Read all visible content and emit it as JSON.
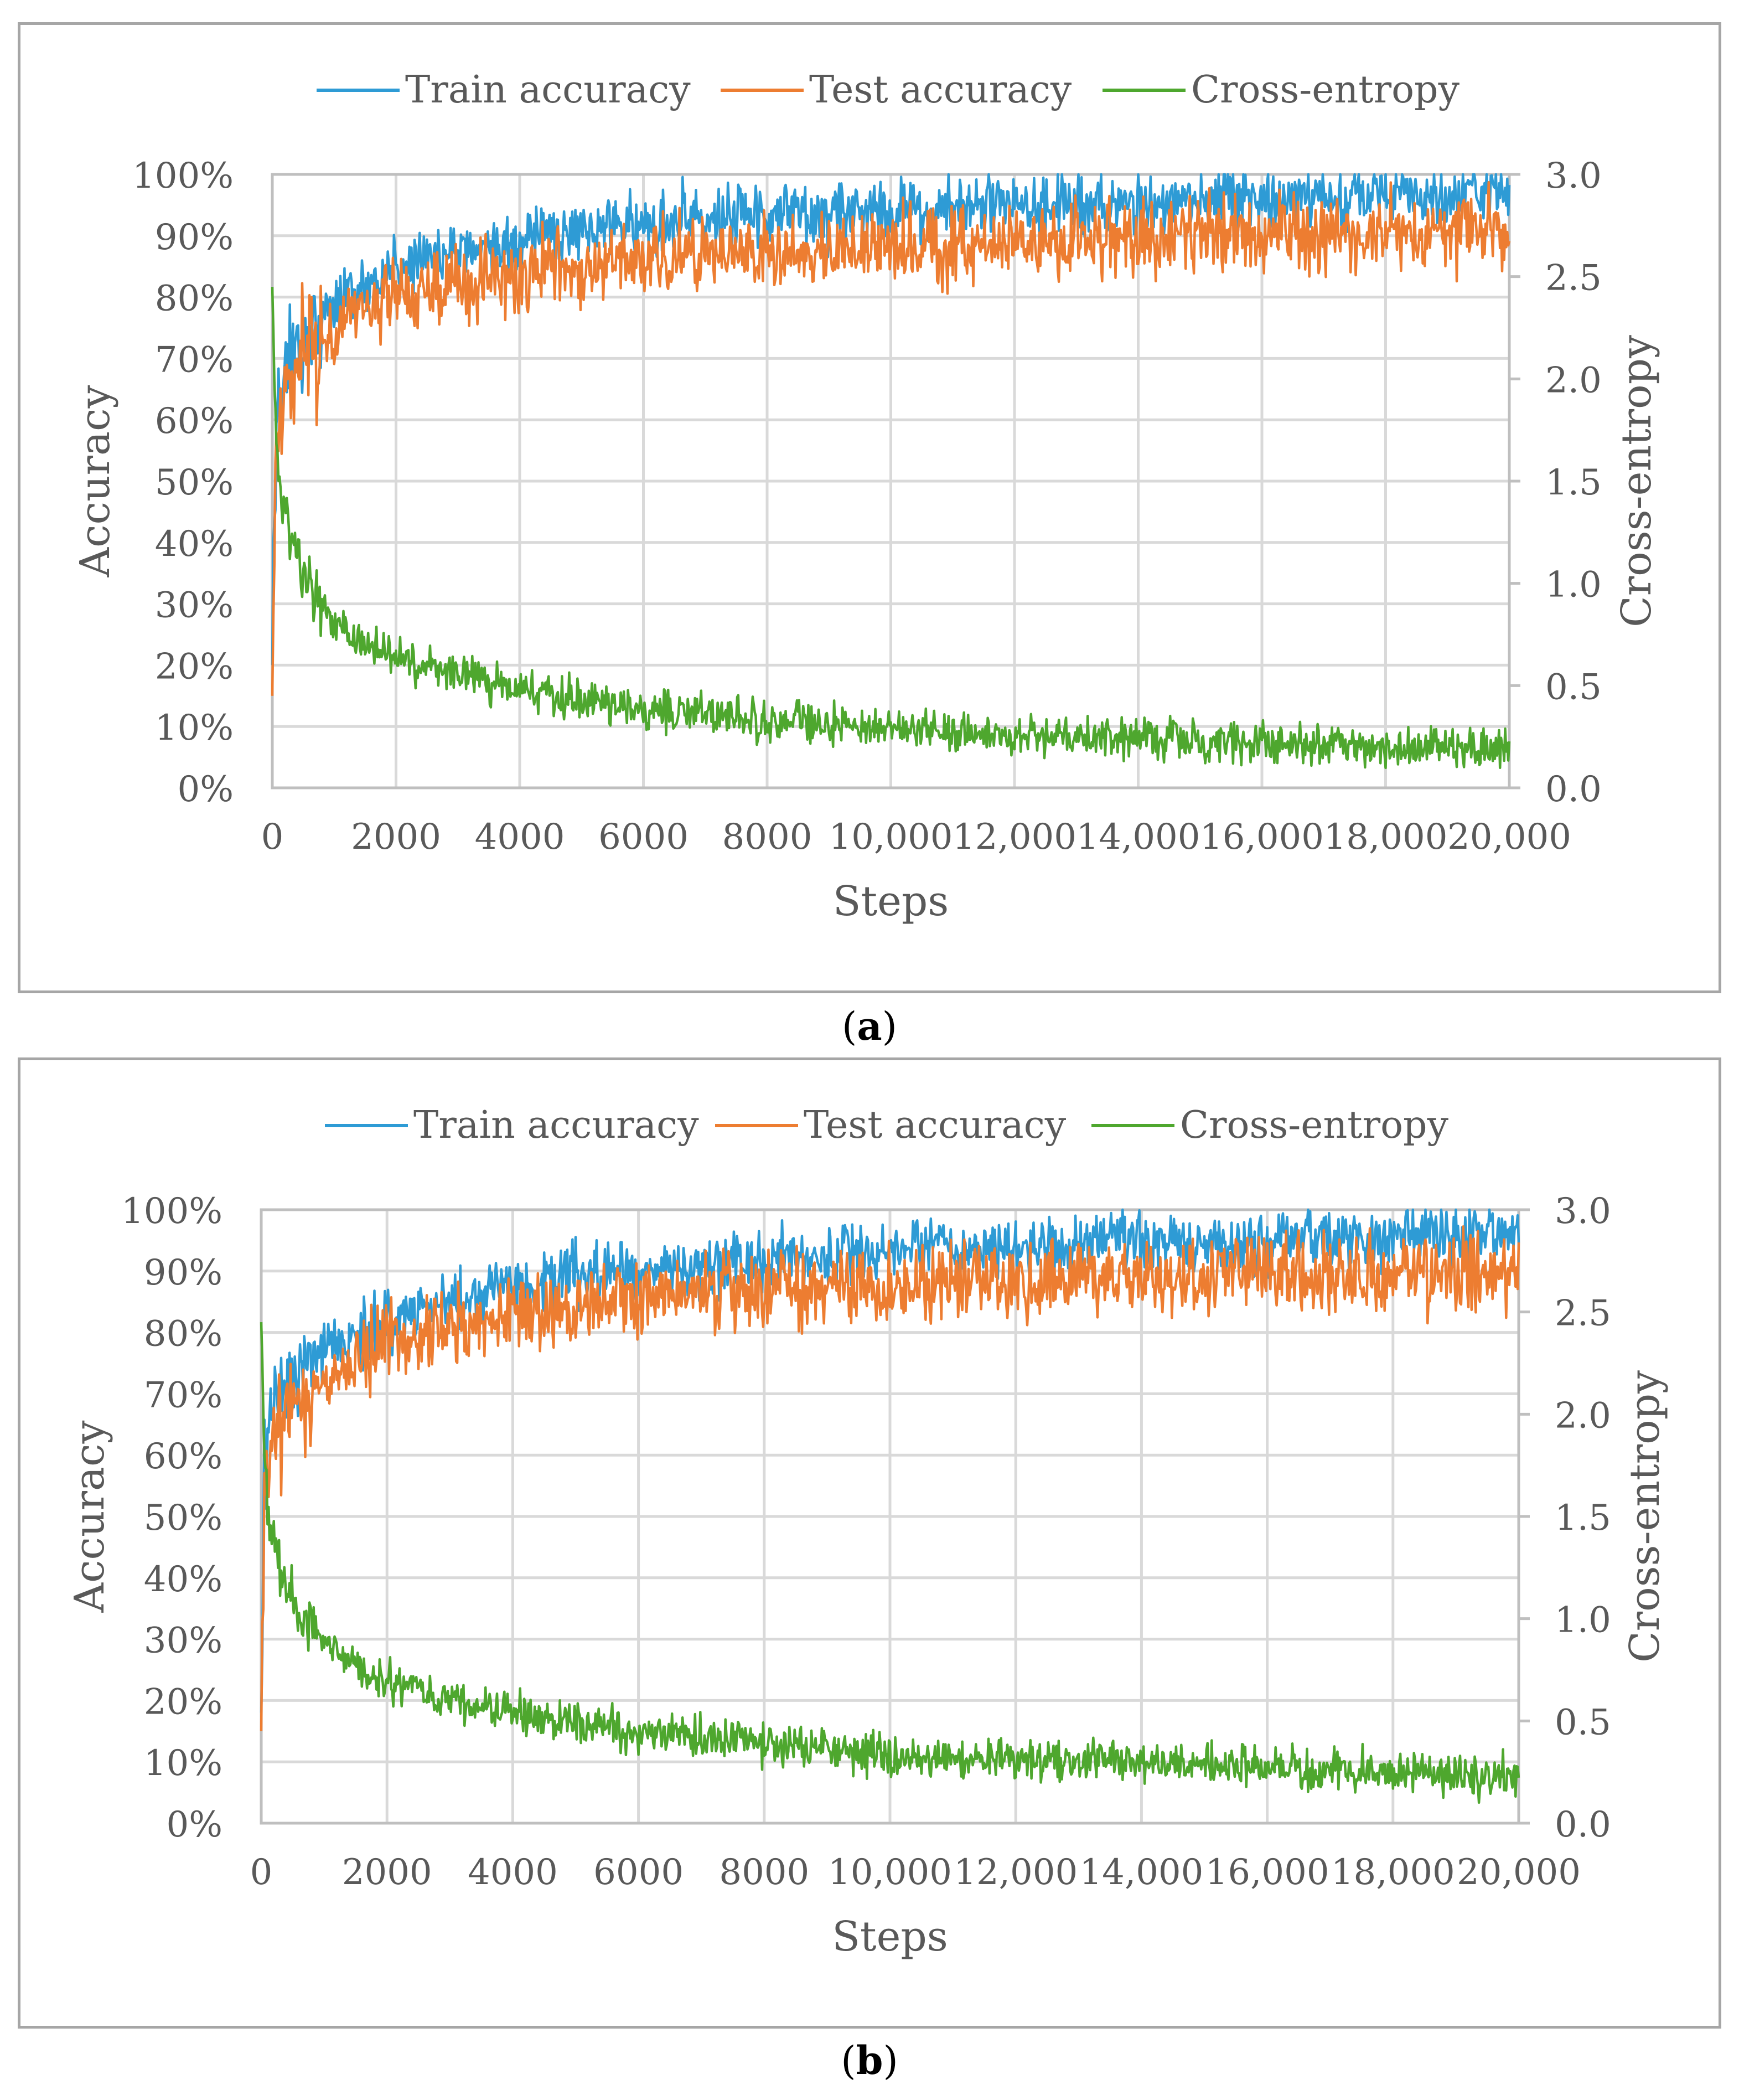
{
  "chart_data": [
    {
      "type": "line",
      "panel_label": "a",
      "title": "",
      "xlabel": "Steps",
      "ylabel": "Accuracy",
      "y2label": "Cross-entropy",
      "xlim": [
        0,
        20000
      ],
      "ylim": [
        0,
        100
      ],
      "y2lim": [
        0,
        3.0
      ],
      "x_ticks": [
        "0",
        "2000",
        "4000",
        "6000",
        "8000",
        "10,000",
        "12,000",
        "14,000",
        "16,000",
        "18,000",
        "20,000"
      ],
      "y_ticks": [
        "0%",
        "10%",
        "20%",
        "30%",
        "40%",
        "50%",
        "60%",
        "70%",
        "80%",
        "90%",
        "100%"
      ],
      "y2_ticks": [
        "0.0",
        "0.5",
        "1.0",
        "1.5",
        "2.0",
        "2.5",
        "3.0"
      ],
      "grid": true,
      "legend_position": "top-center",
      "series": [
        {
          "name": "Train accuracy",
          "axis": "left",
          "color": "#2e9bd5",
          "noise": 3.5,
          "x": [
            0,
            50,
            100,
            200,
            400,
            600,
            1000,
            1500,
            2000,
            3000,
            4000,
            5000,
            6000,
            8000,
            10000,
            12000,
            14000,
            16000,
            18000,
            20000
          ],
          "values": [
            20,
            55,
            62,
            66,
            71,
            74,
            79,
            82,
            85,
            87.5,
            89.5,
            91,
            92,
            93,
            94,
            95,
            95.5,
            96,
            96.5,
            97
          ]
        },
        {
          "name": "Test accuracy",
          "axis": "left",
          "color": "#ed7d31",
          "noise": 4.5,
          "x": [
            0,
            50,
            100,
            200,
            400,
            600,
            1000,
            1500,
            2000,
            3000,
            4000,
            5000,
            6000,
            8000,
            10000,
            12000,
            14000,
            16000,
            18000,
            20000
          ],
          "values": [
            15,
            52,
            58,
            63,
            68,
            71,
            75,
            78,
            80,
            82,
            84,
            85,
            86,
            87.5,
            88,
            89,
            89.5,
            90,
            90.5,
            91
          ]
        },
        {
          "name": "Cross-entropy",
          "axis": "right",
          "color": "#4ea72e",
          "noise": 0.07,
          "x": [
            0,
            50,
            100,
            200,
            400,
            600,
            1000,
            1500,
            2000,
            3000,
            4000,
            5000,
            6000,
            8000,
            10000,
            12000,
            14000,
            16000,
            18000,
            20000
          ],
          "values": [
            2.45,
            1.8,
            1.55,
            1.3,
            1.1,
            0.98,
            0.82,
            0.72,
            0.64,
            0.55,
            0.48,
            0.43,
            0.39,
            0.33,
            0.29,
            0.26,
            0.24,
            0.22,
            0.2,
            0.18
          ]
        }
      ]
    },
    {
      "type": "line",
      "panel_label": "b",
      "title": "",
      "xlabel": "Steps",
      "ylabel": "Accuracy",
      "y2label": "Cross-entropy",
      "xlim": [
        0,
        20000
      ],
      "ylim": [
        0,
        100
      ],
      "y2lim": [
        0,
        3.0
      ],
      "x_ticks": [
        "0",
        "2000",
        "4000",
        "6000",
        "8000",
        "10,000",
        "12,000",
        "14,000",
        "16,000",
        "18,000",
        "20,000"
      ],
      "y_ticks": [
        "0%",
        "10%",
        "20%",
        "30%",
        "40%",
        "50%",
        "60%",
        "70%",
        "80%",
        "90%",
        "100%"
      ],
      "y2_ticks": [
        "0.0",
        "0.5",
        "1.0",
        "1.5",
        "2.0",
        "2.5",
        "3.0"
      ],
      "grid": true,
      "legend_position": "top-center",
      "series": [
        {
          "name": "Train accuracy",
          "axis": "left",
          "color": "#2e9bd5",
          "noise": 3.5,
          "x": [
            0,
            50,
            100,
            200,
            400,
            600,
            1000,
            1500,
            2000,
            3000,
            4000,
            5000,
            6000,
            8000,
            10000,
            12000,
            14000,
            16000,
            18000,
            20000
          ],
          "values": [
            18,
            58,
            64,
            68,
            71,
            73,
            76,
            79,
            82,
            85,
            87.5,
            89,
            90,
            92,
            93,
            94,
            94.5,
            95,
            95.5,
            96
          ]
        },
        {
          "name": "Test accuracy",
          "axis": "left",
          "color": "#ed7d31",
          "noise": 4.5,
          "x": [
            0,
            50,
            100,
            200,
            400,
            600,
            1000,
            1500,
            2000,
            3000,
            4000,
            5000,
            6000,
            8000,
            10000,
            12000,
            14000,
            16000,
            18000,
            20000
          ],
          "values": [
            15,
            55,
            60,
            64,
            67,
            69,
            72,
            75,
            78,
            81,
            83,
            84.5,
            85.5,
            87,
            88,
            88.5,
            89,
            89.5,
            90,
            90
          ]
        },
        {
          "name": "Cross-entropy",
          "axis": "right",
          "color": "#4ea72e",
          "noise": 0.07,
          "x": [
            0,
            50,
            100,
            200,
            400,
            600,
            1000,
            1500,
            2000,
            3000,
            4000,
            5000,
            6000,
            8000,
            10000,
            12000,
            14000,
            16000,
            18000,
            20000
          ],
          "values": [
            2.45,
            1.85,
            1.6,
            1.35,
            1.15,
            1.02,
            0.88,
            0.77,
            0.69,
            0.6,
            0.54,
            0.49,
            0.45,
            0.39,
            0.34,
            0.31,
            0.29,
            0.27,
            0.25,
            0.23
          ]
        }
      ]
    }
  ]
}
